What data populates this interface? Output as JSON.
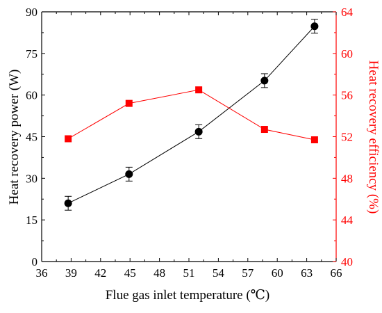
{
  "chart_data": {
    "type": "line",
    "xlabel": "Flue gas inlet temperature (℃)",
    "ylabel_left": "Heat recovery power (W)",
    "ylabel_right": "Heat recovery efficiency (%)",
    "xlim": [
      36,
      66
    ],
    "ylim_left": [
      0,
      90
    ],
    "ylim_right": [
      40,
      64
    ],
    "x_ticks": [
      "36",
      "39",
      "42",
      "45",
      "48",
      "51",
      "54",
      "57",
      "60",
      "63",
      "66"
    ],
    "y_ticks_left": [
      "0",
      "15",
      "30",
      "45",
      "60",
      "75",
      "90"
    ],
    "y_ticks_right": [
      "40",
      "44",
      "48",
      "52",
      "56",
      "60",
      "64"
    ],
    "grid": false,
    "series": [
      {
        "axis": "left",
        "color": "#000000",
        "marker": "circle",
        "x": [
          38.7,
          44.9,
          52.0,
          58.7,
          63.8
        ],
        "y": [
          21.0,
          31.5,
          46.8,
          65.2,
          84.8
        ],
        "error": [
          2.5,
          2.5,
          2.5,
          2.5,
          2.5
        ]
      },
      {
        "axis": "right",
        "color": "#ff0000",
        "marker": "square",
        "x": [
          38.7,
          44.9,
          52.0,
          58.7,
          63.8
        ],
        "y": [
          51.8,
          55.2,
          56.5,
          52.7,
          51.7
        ]
      }
    ]
  }
}
